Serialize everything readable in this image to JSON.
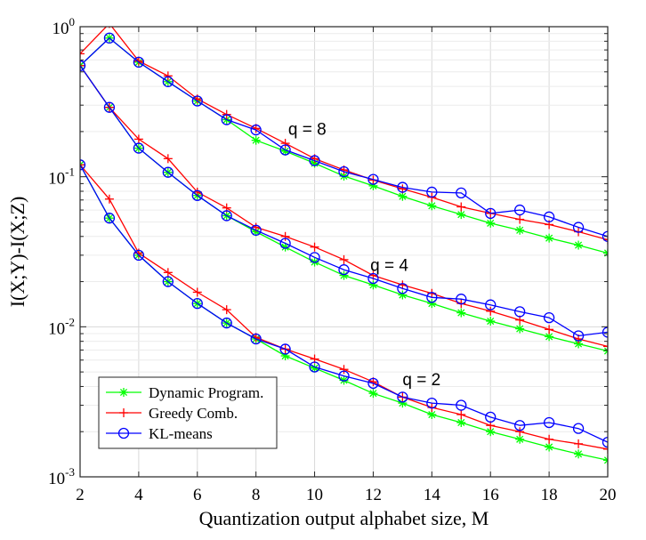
{
  "chart_data": {
    "type": "line",
    "title": "",
    "xlabel": "Quantization output alphabet size, M",
    "ylabel": "I(X;Y)-I(X;Z)",
    "xlim": [
      2,
      20
    ],
    "ylim": [
      0.001,
      1
    ],
    "yscale": "log",
    "grid": true,
    "x_ticks": [
      "2",
      "4",
      "6",
      "8",
      "10",
      "12",
      "14",
      "16",
      "18",
      "20"
    ],
    "y_ticks": [
      {
        "base": "10",
        "exp": "-3",
        "value": 0.001
      },
      {
        "base": "10",
        "exp": "-2",
        "value": 0.01
      },
      {
        "base": "10",
        "exp": "-1",
        "value": 0.1
      },
      {
        "base": "10",
        "exp": "0",
        "value": 1
      }
    ],
    "legend": {
      "position": "bottom-left",
      "entries": [
        {
          "label": "Dynamic Program.",
          "color": "#00ff00",
          "marker": "asterisk"
        },
        {
          "label": "Greedy Comb.",
          "color": "#ff0000",
          "marker": "plus"
        },
        {
          "label": "KL-means",
          "color": "#0000ff",
          "marker": "circle"
        }
      ]
    },
    "annotations": [
      {
        "text": "q = 8",
        "x": 9.1,
        "y": 0.21
      },
      {
        "text": "q = 4",
        "x": 11.9,
        "y": 0.026
      },
      {
        "text": "q = 2",
        "x": 13.0,
        "y": 0.0045
      }
    ],
    "groups": [
      {
        "name": "q = 8",
        "x": [
          2,
          3,
          4,
          5,
          6,
          7,
          8,
          9,
          10,
          11,
          12,
          13,
          14,
          15,
          16,
          17,
          18,
          19,
          20
        ],
        "series": [
          {
            "legend": "Dynamic Program.",
            "values": [
              0.55,
              0.84,
              0.58,
              0.43,
              0.32,
              0.24,
              0.175,
              0.148,
              0.123,
              0.101,
              0.087,
              0.074,
              0.064,
              0.056,
              0.049,
              0.044,
              0.039,
              0.035,
              0.031
            ]
          },
          {
            "legend": "Greedy Comb.",
            "values": [
              0.66,
              1.05,
              0.59,
              0.47,
              0.33,
              0.26,
              0.21,
              0.167,
              0.132,
              0.111,
              0.095,
              0.083,
              0.073,
              0.063,
              0.057,
              0.052,
              0.048,
              0.043,
              0.038
            ]
          },
          {
            "legend": "KL-means",
            "values": [
              0.55,
              0.84,
              0.58,
              0.43,
              0.32,
              0.24,
              0.205,
              0.151,
              0.128,
              0.108,
              0.096,
              0.085,
              0.079,
              0.078,
              0.057,
              0.06,
              0.054,
              0.046,
              0.04
            ]
          }
        ]
      },
      {
        "name": "q = 4",
        "x": [
          2,
          3,
          4,
          5,
          6,
          7,
          8,
          9,
          10,
          11,
          12,
          13,
          14,
          15,
          16,
          17,
          18,
          19,
          20
        ],
        "series": [
          {
            "legend": "Dynamic Program.",
            "values": [
              0.55,
              0.29,
              0.155,
              0.107,
              0.075,
              0.055,
              0.043,
              0.034,
              0.027,
              0.022,
              0.019,
              0.0163,
              0.0143,
              0.0124,
              0.0109,
              0.0097,
              0.0086,
              0.0077,
              0.0069
            ]
          },
          {
            "legend": "Greedy Comb.",
            "values": [
              0.55,
              0.29,
              0.178,
              0.132,
              0.079,
              0.062,
              0.046,
              0.04,
              0.034,
              0.028,
              0.022,
              0.019,
              0.0167,
              0.0143,
              0.0127,
              0.0111,
              0.0096,
              0.0083,
              0.0074
            ]
          },
          {
            "legend": "KL-means",
            "values": [
              0.55,
              0.29,
              0.155,
              0.107,
              0.075,
              0.055,
              0.044,
              0.036,
              0.029,
              0.024,
              0.021,
              0.018,
              0.0157,
              0.0153,
              0.014,
              0.0126,
              0.0115,
              0.0087,
              0.0092
            ]
          }
        ]
      },
      {
        "name": "q = 2",
        "x": [
          2,
          3,
          4,
          5,
          6,
          7,
          8,
          9,
          10,
          11,
          12,
          13,
          14,
          15,
          16,
          17,
          18,
          19,
          20
        ],
        "series": [
          {
            "legend": "Dynamic Program.",
            "values": [
              0.12,
              0.053,
              0.03,
              0.02,
              0.0143,
              0.0106,
              0.0083,
              0.0064,
              0.0053,
              0.0044,
              0.0036,
              0.0031,
              0.0026,
              0.0023,
              0.002,
              0.00178,
              0.00158,
              0.00142,
              0.00129
            ]
          },
          {
            "legend": "Greedy Comb.",
            "values": [
              0.12,
              0.071,
              0.031,
              0.023,
              0.017,
              0.013,
              0.0085,
              0.0071,
              0.0061,
              0.0052,
              0.0043,
              0.0034,
              0.0029,
              0.0026,
              0.0022,
              0.002,
              0.00178,
              0.00166,
              0.00153
            ]
          },
          {
            "legend": "KL-means",
            "values": [
              0.12,
              0.053,
              0.03,
              0.02,
              0.0143,
              0.0106,
              0.0083,
              0.0071,
              0.0054,
              0.0047,
              0.0042,
              0.0034,
              0.0031,
              0.003,
              0.0025,
              0.0022,
              0.0023,
              0.0021,
              0.0017
            ]
          }
        ]
      }
    ]
  }
}
